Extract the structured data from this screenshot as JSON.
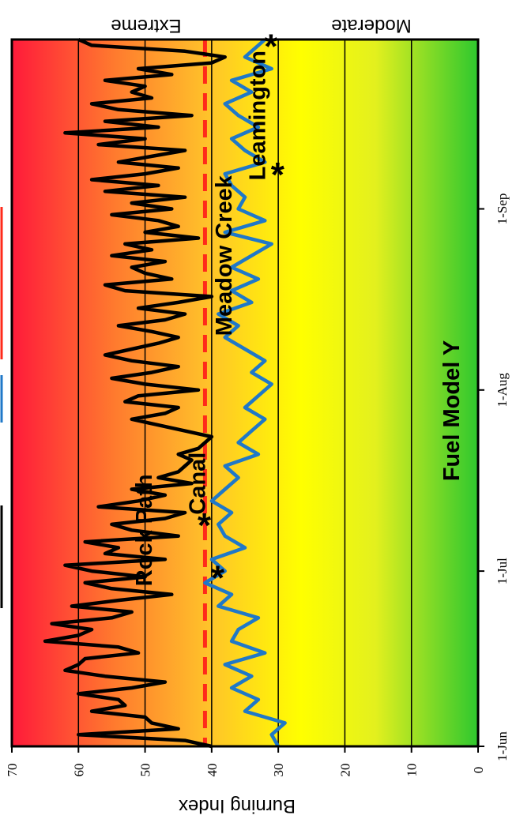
{
  "chart_data": {
    "type": "line",
    "ylabel": "Burning Index",
    "ylim": [
      0,
      70
    ],
    "y_ticks": [
      "0",
      "10",
      "20",
      "30",
      "40",
      "50",
      "60",
      "70"
    ],
    "x_ticks": [
      "1-Jun",
      "1-Jul",
      "1-Aug",
      "1-Sep"
    ],
    "x_tick_days": [
      0,
      30,
      61,
      92
    ],
    "x_range_days": [
      0,
      121
    ],
    "grid": true,
    "class_labels": {
      "top": "Extreme",
      "bottom": "Moderate"
    },
    "threshold": {
      "value": 41,
      "color": "#ff2a1a"
    },
    "fuel_model_label": "Fuel Model Y",
    "annotations": [
      {
        "text": "Rock Path",
        "star_day": 29,
        "star_value": 41,
        "label_day": 37,
        "label_value": 49
      },
      {
        "text": "Canal",
        "star_day": 38,
        "star_value": 43,
        "label_day": 45,
        "label_value": 41
      },
      {
        "text": "Meadow Creek",
        "star_day": 98,
        "star_value": 32,
        "label_day": 84,
        "label_value": 37
      },
      {
        "text": "Leamington",
        "star_day": 120,
        "star_value": 33,
        "label_day": 108,
        "label_value": 32
      }
    ],
    "series": [
      {
        "color": "#000000",
        "x": [
          0,
          1,
          2,
          3,
          4,
          5,
          6,
          7,
          8,
          9,
          10,
          11,
          12,
          13,
          14,
          15,
          16,
          17,
          18,
          19,
          20,
          21,
          22,
          23,
          24,
          25,
          26,
          27,
          28,
          29,
          30,
          31,
          32,
          33,
          34,
          35,
          36,
          37,
          38,
          39,
          40,
          41,
          42,
          43,
          44,
          45,
          46,
          47,
          48,
          49,
          50,
          51,
          52,
          53,
          54,
          55,
          56,
          57,
          58,
          59,
          60,
          61,
          62,
          63,
          64,
          65,
          66,
          67,
          68,
          69,
          70,
          71,
          72,
          73,
          74,
          75,
          76,
          77,
          78,
          79,
          80,
          81,
          82,
          83,
          84,
          85,
          86,
          87,
          88,
          89,
          90,
          91,
          92,
          93,
          94,
          95,
          96,
          97,
          98,
          99,
          100,
          101,
          102,
          103,
          104,
          105,
          106,
          107,
          108,
          109,
          110,
          111,
          112,
          113,
          114,
          115,
          116,
          117,
          118,
          119,
          120,
          121
        ],
        "values": [
          40,
          44,
          60,
          45,
          49,
          50,
          58,
          53,
          54,
          60,
          52,
          47,
          56,
          62,
          60,
          59,
          51,
          54,
          65,
          60,
          58,
          64,
          55,
          52,
          61,
          54,
          46,
          55,
          59,
          50,
          58,
          62,
          47,
          56,
          54,
          59,
          45,
          52,
          55,
          47,
          44,
          57,
          51,
          47,
          52,
          43,
          48,
          45,
          44,
          43,
          45,
          42,
          41,
          40,
          44,
          48,
          52,
          47,
          45,
          53,
          51,
          42,
          50,
          55,
          49,
          45,
          52,
          56,
          52,
          48,
          45,
          49,
          54,
          47,
          44,
          51,
          45,
          40,
          53,
          56,
          46,
          50,
          52,
          47,
          55,
          49,
          53,
          42,
          50,
          45,
          48,
          55,
          46,
          52,
          44,
          56,
          48,
          58,
          50,
          45,
          54,
          49,
          44,
          57,
          50,
          62,
          48,
          56,
          43,
          54,
          58,
          49,
          52,
          50,
          56,
          46,
          51,
          40,
          38,
          44,
          58,
          60
        ]
      },
      {
        "color": "#1f78c8",
        "x": [
          0,
          2,
          4,
          6,
          8,
          10,
          12,
          14,
          16,
          18,
          20,
          22,
          24,
          26,
          28,
          30,
          32,
          34,
          36,
          38,
          40,
          42,
          44,
          46,
          48,
          50,
          52,
          54,
          56,
          58,
          60,
          62,
          64,
          66,
          68,
          70,
          72,
          74,
          76,
          78,
          80,
          82,
          84,
          86,
          88,
          90,
          92,
          94,
          96,
          98,
          100,
          102,
          104,
          106,
          108,
          110,
          112,
          114,
          116,
          118,
          120,
          121
        ],
        "values": [
          30,
          31,
          29,
          35,
          33,
          37,
          34,
          38,
          32,
          37,
          36,
          33,
          39,
          37,
          41,
          38,
          40,
          35,
          38,
          39,
          37,
          40,
          38,
          36,
          38,
          33,
          36,
          34,
          32,
          35,
          33,
          31,
          34,
          32,
          35,
          38,
          36,
          39,
          34,
          37,
          33,
          37,
          34,
          31,
          38,
          32,
          36,
          35,
          37,
          38,
          32,
          35,
          37,
          33,
          36,
          38,
          34,
          37,
          31,
          35,
          33,
          32
        ]
      }
    ]
  }
}
